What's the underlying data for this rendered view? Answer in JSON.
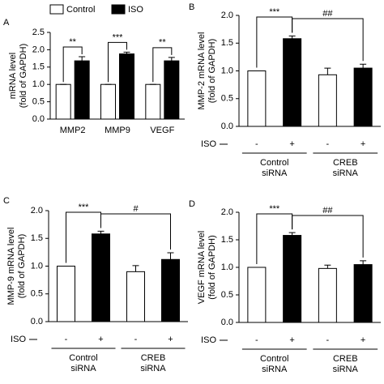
{
  "chart_data": [
    {
      "type": "bar",
      "panel_label": "A",
      "ylabel": [
        "mRNA level",
        "(fold of GAPDH)"
      ],
      "categories": [
        "MMP2",
        "MMP9",
        "VEGF"
      ],
      "series": [
        {
          "name": "Control",
          "color": "#ffffff",
          "values": [
            1.0,
            1.0,
            1.0
          ],
          "errors": [
            0,
            0,
            0
          ]
        },
        {
          "name": "ISO",
          "color": "#000000",
          "values": [
            1.68,
            1.88,
            1.68
          ],
          "errors": [
            0.12,
            0.05,
            0.1
          ]
        }
      ],
      "annotations": [
        "**",
        "***",
        "**"
      ],
      "ylim": [
        0,
        2.5
      ],
      "yticks": [
        {
          "value": 0,
          "label": "0.0"
        },
        {
          "value": 0.5,
          "label": "0.5"
        },
        {
          "value": 1,
          "label": "1.0"
        },
        {
          "value": 1.5,
          "label": "1.5"
        },
        {
          "value": 2,
          "label": "2.0"
        },
        {
          "value": 2.5,
          "label": "2.5"
        }
      ]
    },
    {
      "type": "bar",
      "panel_label": "B",
      "ylabel": [
        "MMP-2 mRNA level",
        "(fold of GAPDH)"
      ],
      "x_label": "ISO",
      "categories": [
        "-",
        "+",
        "-",
        "+"
      ],
      "values": [
        1.0,
        1.58,
        0.93,
        1.05
      ],
      "errors": [
        0,
        0.05,
        0.12,
        0.07
      ],
      "colors": [
        "#ffffff",
        "#000000",
        "#ffffff",
        "#000000"
      ],
      "groups": [
        [
          "Control",
          "siRNA"
        ],
        [
          "CREB",
          "siRNA"
        ]
      ],
      "annotations": [
        "***",
        "##"
      ],
      "ylim": [
        0,
        2
      ],
      "yticks": [
        {
          "value": 0,
          "label": "0.0"
        },
        {
          "value": 0.5,
          "label": "0.5"
        },
        {
          "value": 1,
          "label": "1.0"
        },
        {
          "value": 1.5,
          "label": "1.5"
        },
        {
          "value": 2,
          "label": "2.0"
        }
      ]
    },
    {
      "type": "bar",
      "panel_label": "C",
      "ylabel": [
        "MMP-9 mRNA level",
        "(fold of GAPDH)"
      ],
      "x_label": "ISO",
      "categories": [
        "-",
        "+",
        "-",
        "+"
      ],
      "values": [
        1.0,
        1.58,
        0.9,
        1.12
      ],
      "errors": [
        0,
        0.05,
        0.11,
        0.12
      ],
      "colors": [
        "#ffffff",
        "#000000",
        "#ffffff",
        "#000000"
      ],
      "groups": [
        [
          "Control",
          "siRNA"
        ],
        [
          "CREB",
          "siRNA"
        ]
      ],
      "annotations": [
        "***",
        "#"
      ],
      "ylim": [
        0,
        2
      ],
      "yticks": [
        {
          "value": 0,
          "label": "0.0"
        },
        {
          "value": 0.5,
          "label": "0.5"
        },
        {
          "value": 1,
          "label": "1.0"
        },
        {
          "value": 1.5,
          "label": "1.5"
        },
        {
          "value": 2,
          "label": "2.0"
        }
      ]
    },
    {
      "type": "bar",
      "panel_label": "D",
      "ylabel": [
        "VEGF mRNA level",
        "(fold of GAPDH)"
      ],
      "x_label": "ISO",
      "categories": [
        "-",
        "+",
        "-",
        "+"
      ],
      "values": [
        1.0,
        1.58,
        0.98,
        1.05
      ],
      "errors": [
        0,
        0.05,
        0.06,
        0.07
      ],
      "colors": [
        "#ffffff",
        "#000000",
        "#ffffff",
        "#000000"
      ],
      "groups": [
        [
          "Control",
          "siRNA"
        ],
        [
          "CREB",
          "siRNA"
        ]
      ],
      "annotations": [
        "***",
        "##"
      ],
      "ylim": [
        0,
        2
      ],
      "yticks": [
        {
          "value": 0,
          "label": "0.0"
        },
        {
          "value": 0.5,
          "label": "0.5"
        },
        {
          "value": 1,
          "label": "1.0"
        },
        {
          "value": 1.5,
          "label": "1.5"
        },
        {
          "value": 2,
          "label": "2.0"
        }
      ]
    }
  ]
}
